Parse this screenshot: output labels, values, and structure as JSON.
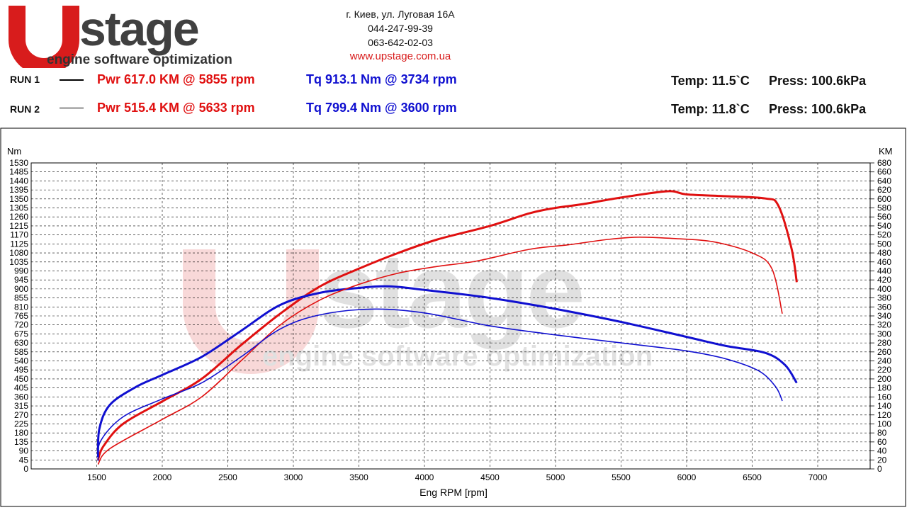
{
  "header": {
    "logo_text": "Upstage",
    "tagline": "engine software optimization",
    "contact": {
      "address": "г. Киев, ул. Луговая 16А",
      "phone1": "044-247-99-39",
      "phone2": "063-642-02-03",
      "url": "www.upstage.com.ua"
    },
    "runs": [
      {
        "label": "RUN 1",
        "pwr": "Pwr  617.0 KM @ 5855 rpm",
        "tq": "Tq 913.1 Nm @ 3734 rpm",
        "temp": "Temp: 11.5`C",
        "press": "Press: 100.6kPa"
      },
      {
        "label": "RUN 2",
        "pwr": "Pwr  515.4 KM @ 5633 rpm",
        "tq": "Tq 799.4 Nm @ 3600 rpm",
        "temp": "Temp: 11.8`C",
        "press": "Press: 100.6kPa"
      }
    ]
  },
  "chart_data": {
    "type": "line",
    "xlabel": "Eng RPM [rpm]",
    "ylabel_left": "Nm",
    "ylabel_right": "KM",
    "xlim": [
      1000,
      7400
    ],
    "ylim_left": [
      0,
      1530
    ],
    "ylim_right": [
      0,
      680
    ],
    "x_ticks": [
      "1500",
      "2000",
      "2500",
      "3000",
      "3500",
      "4000",
      "4500",
      "5000",
      "5500",
      "6000",
      "6500",
      "7000"
    ],
    "y_ticks_left": [
      "0",
      "45",
      "90",
      "135",
      "180",
      "225",
      "270",
      "315",
      "360",
      "405",
      "450",
      "495",
      "540",
      "585",
      "630",
      "675",
      "720",
      "765",
      "810",
      "855",
      "900",
      "945",
      "990",
      "1035",
      "1080",
      "1125",
      "1170",
      "1215",
      "1260",
      "1305",
      "1350",
      "1395",
      "1440",
      "1485",
      "1530"
    ],
    "y_ticks_right": [
      "0",
      "20",
      "40",
      "60",
      "80",
      "100",
      "120",
      "140",
      "160",
      "180",
      "200",
      "220",
      "240",
      "260",
      "280",
      "300",
      "320",
      "340",
      "360",
      "380",
      "400",
      "420",
      "440",
      "460",
      "480",
      "500",
      "520",
      "540",
      "560",
      "580",
      "600",
      "620",
      "640",
      "660",
      "680"
    ],
    "grid": true,
    "colors": {
      "power": "#e01010",
      "torque": "#1010d0"
    },
    "series": [
      {
        "run": "RUN 1",
        "kind": "power",
        "axis": "right",
        "x": [
          1510,
          1550,
          1700,
          2000,
          2300,
          2600,
          2900,
          3200,
          3500,
          3800,
          4100,
          4500,
          4800,
          5000,
          5200,
          5500,
          5855,
          6000,
          6300,
          6600,
          6700,
          6800,
          6840
        ],
        "y": [
          20,
          50,
          100,
          150,
          200,
          275,
          345,
          405,
          445,
          480,
          510,
          540,
          568,
          580,
          588,
          603,
          617,
          610,
          606,
          601,
          585,
          490,
          415
        ]
      },
      {
        "run": "RUN 1",
        "kind": "torque",
        "axis": "left",
        "x": [
          1510,
          1520,
          1600,
          1800,
          2000,
          2300,
          2600,
          2900,
          3200,
          3500,
          3734,
          4000,
          4500,
          5000,
          5500,
          6000,
          6300,
          6600,
          6750,
          6840
        ],
        "y": [
          60,
          200,
          320,
          410,
          470,
          560,
          690,
          820,
          880,
          905,
          913,
          895,
          855,
          800,
          735,
          660,
          615,
          580,
          520,
          430
        ]
      },
      {
        "run": "RUN 2",
        "kind": "power",
        "axis": "right",
        "x": [
          1510,
          1600,
          2000,
          2300,
          2600,
          2900,
          3200,
          3500,
          3800,
          4100,
          4400,
          4800,
          5100,
          5400,
          5633,
          5900,
          6200,
          6500,
          6650,
          6730
        ],
        "y": [
          10,
          45,
          110,
          160,
          240,
          320,
          375,
          410,
          435,
          450,
          462,
          488,
          498,
          510,
          515,
          512,
          505,
          480,
          445,
          345
        ]
      },
      {
        "run": "RUN 2",
        "kind": "torque",
        "axis": "left",
        "x": [
          1510,
          1530,
          1700,
          2000,
          2300,
          2600,
          2900,
          3200,
          3600,
          4000,
          4500,
          5000,
          5500,
          6000,
          6300,
          6550,
          6680,
          6730
        ],
        "y": [
          40,
          140,
          260,
          350,
          430,
          560,
          700,
          770,
          799,
          780,
          715,
          670,
          630,
          590,
          550,
          490,
          410,
          340
        ]
      }
    ]
  }
}
